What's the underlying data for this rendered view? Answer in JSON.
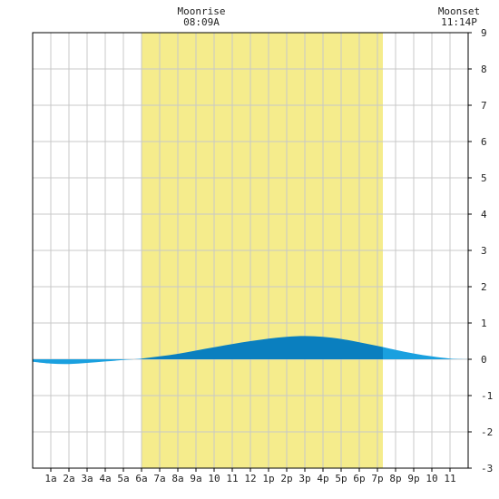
{
  "chart_data": {
    "type": "area",
    "title": "",
    "xlabel": "",
    "ylabel": "",
    "ylim": [
      -3,
      9
    ],
    "xlim": [
      0,
      24
    ],
    "grid": true,
    "y_ticks": [
      -3,
      -2,
      -1,
      0,
      1,
      2,
      3,
      4,
      5,
      6,
      7,
      8,
      9
    ],
    "x_tick_labels": [
      "1a",
      "2a",
      "3a",
      "4a",
      "5a",
      "6a",
      "7a",
      "8a",
      "9a",
      "10",
      "11",
      "12",
      "1p",
      "2p",
      "3p",
      "4p",
      "5p",
      "6p",
      "7p",
      "8p",
      "9p",
      "10",
      "11"
    ],
    "daylight": {
      "start": 6.0,
      "end": 19.3
    },
    "annotations": [
      {
        "lines": [
          "Moonrise",
          "08:09A"
        ],
        "x": 9.3
      },
      {
        "lines": [
          "Moonset",
          "11:14P"
        ],
        "x": 23.5
      }
    ],
    "series": [
      {
        "x": [
          0,
          1,
          2,
          3,
          4,
          5,
          6,
          7,
          8,
          9,
          10,
          11,
          12,
          13,
          14,
          15,
          16,
          17,
          18,
          19,
          20,
          21,
          22,
          23,
          24
        ],
        "values": [
          -0.07,
          -0.12,
          -0.13,
          -0.1,
          -0.06,
          -0.02,
          0.02,
          0.08,
          0.15,
          0.24,
          0.33,
          0.42,
          0.5,
          0.57,
          0.62,
          0.64,
          0.62,
          0.56,
          0.47,
          0.37,
          0.26,
          0.16,
          0.08,
          0.02,
          0.0
        ]
      }
    ],
    "colors": {
      "daylight": "#f5ec8c",
      "tide_day": "#0a7fbf",
      "tide_night": "#1aa0df",
      "grid": "#c8c8c8",
      "axis": "#000000"
    }
  }
}
